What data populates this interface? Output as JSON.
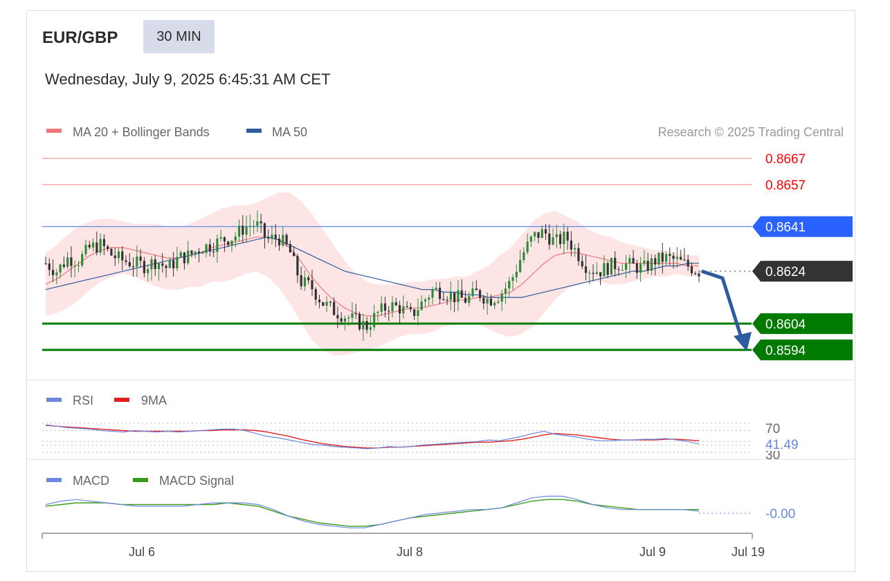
{
  "header": {
    "symbol": "EUR/GBP",
    "timeframe": "30 MIN",
    "timestamp": "Wednesday, July 9, 2025 6:45:31 AM CET"
  },
  "colors": {
    "ma20": "#f07878",
    "ma50": "#2e5a9e",
    "bb_fill": "#fde0e0",
    "bull": "#2e8b3a",
    "bear": "#333333",
    "resistance": "#ff0000",
    "pivot": "#2962ff",
    "support": "#007a00",
    "current": "#333333",
    "arrow": "#2e5aa0",
    "rsi": "#6a88e0",
    "rsi_ma": "#e02020",
    "macd": "#6a88e0",
    "macd_signal": "#3a9a1a"
  },
  "chart_data": [
    {
      "type": "candlestick",
      "legend": [
        "MA 20 + Bollinger Bands",
        "MA 50"
      ],
      "credit": "Research © 2025 Trading Central",
      "ylim": [
        0.8585,
        0.8672
      ],
      "x_ticks": [
        "Jul 6",
        "Jul 8",
        "Jul 9",
        "Jul 19"
      ],
      "levels": [
        {
          "value": 0.8667,
          "label": "0.8667",
          "kind": "resistance"
        },
        {
          "value": 0.8657,
          "label": "0.8657",
          "kind": "resistance"
        },
        {
          "value": 0.8641,
          "label": "0.8641",
          "kind": "pivot"
        },
        {
          "value": 0.8624,
          "label": "0.8624",
          "kind": "current"
        },
        {
          "value": 0.8604,
          "label": "0.8604",
          "kind": "support"
        },
        {
          "value": 0.8594,
          "label": "0.8594",
          "kind": "support"
        }
      ],
      "close_path": [
        0.8627,
        0.8624,
        0.8629,
        0.8628,
        0.8633,
        0.8634,
        0.863,
        0.8628,
        0.8627,
        0.8626,
        0.8628,
        0.8625,
        0.8629,
        0.863,
        0.8633,
        0.8634,
        0.8636,
        0.8637,
        0.8641,
        0.8642,
        0.8636,
        0.8637,
        0.8632,
        0.862,
        0.8618,
        0.8612,
        0.8609,
        0.8607,
        0.8605,
        0.8603,
        0.8608,
        0.8611,
        0.861,
        0.8607,
        0.8612,
        0.8617,
        0.8616,
        0.8614,
        0.8613,
        0.8616,
        0.8613,
        0.8615,
        0.862,
        0.863,
        0.8637,
        0.8639,
        0.8635,
        0.8637,
        0.8631,
        0.8625,
        0.8624,
        0.8626,
        0.8627,
        0.8626,
        0.8625,
        0.8628,
        0.8629,
        0.8628,
        0.8626,
        0.8624
      ],
      "ma20": [
        0.8619,
        0.8621,
        0.8624,
        0.8627,
        0.863,
        0.8632,
        0.8633,
        0.8633,
        0.8632,
        0.8631,
        0.863,
        0.8629,
        0.8629,
        0.863,
        0.8631,
        0.8633,
        0.8634,
        0.8635,
        0.8636,
        0.8637,
        0.8637,
        0.8636,
        0.8633,
        0.8628,
        0.8622,
        0.8617,
        0.8613,
        0.861,
        0.8608,
        0.8607,
        0.8607,
        0.8608,
        0.8609,
        0.861,
        0.861,
        0.8611,
        0.8612,
        0.8613,
        0.8613,
        0.8614,
        0.8614,
        0.8615,
        0.8616,
        0.8619,
        0.8623,
        0.8627,
        0.863,
        0.8631,
        0.8631,
        0.863,
        0.8629,
        0.8628,
        0.8627,
        0.8627,
        0.8627,
        0.8627,
        0.8627,
        0.8627,
        0.8626,
        0.8626
      ],
      "ma50": [
        0.8617,
        0.8618,
        0.8619,
        0.862,
        0.8621,
        0.8622,
        0.8623,
        0.8624,
        0.8625,
        0.8626,
        0.8627,
        0.8628,
        0.8629,
        0.863,
        0.8631,
        0.8632,
        0.8633,
        0.8634,
        0.8635,
        0.8636,
        0.8637,
        0.8636,
        0.8634,
        0.8632,
        0.863,
        0.8628,
        0.8626,
        0.8624,
        0.8623,
        0.8622,
        0.8621,
        0.862,
        0.8619,
        0.8618,
        0.8617,
        0.8617,
        0.8616,
        0.8616,
        0.8615,
        0.8615,
        0.8614,
        0.8614,
        0.8614,
        0.8614,
        0.8615,
        0.8616,
        0.8617,
        0.8618,
        0.8619,
        0.862,
        0.8621,
        0.8622,
        0.8623,
        0.8624,
        0.8624,
        0.8625,
        0.8626,
        0.8626,
        0.8627,
        0.8627
      ],
      "bb_width": [
        0.0012,
        0.0013,
        0.0014,
        0.0014,
        0.0013,
        0.0012,
        0.0011,
        0.001,
        0.001,
        0.0011,
        0.0012,
        0.0012,
        0.0012,
        0.0012,
        0.0013,
        0.0013,
        0.0014,
        0.0014,
        0.0013,
        0.0013,
        0.0015,
        0.0018,
        0.0021,
        0.0023,
        0.0024,
        0.0023,
        0.0021,
        0.0018,
        0.0015,
        0.0013,
        0.0012,
        0.0011,
        0.001,
        0.001,
        0.001,
        0.001,
        0.0009,
        0.0009,
        0.0009,
        0.001,
        0.0012,
        0.0015,
        0.0017,
        0.0019,
        0.002,
        0.0019,
        0.0017,
        0.0014,
        0.0012,
        0.001,
        0.0009,
        0.0009,
        0.0008,
        0.0007,
        0.0006,
        0.0005,
        0.0005,
        0.0004,
        0.0004,
        0.0004
      ],
      "forecast_to": 0.8594
    },
    {
      "type": "line",
      "legend": [
        "RSI",
        "9MA"
      ],
      "ylim": [
        30,
        70
      ],
      "level_labels": [
        "70",
        "30"
      ],
      "last_value_label": "41.49",
      "rsi": [
        68,
        66,
        64,
        63,
        62,
        60,
        59,
        58,
        60,
        59,
        58,
        59,
        58,
        59,
        60,
        61,
        62,
        62,
        60,
        56,
        52,
        50,
        47,
        44,
        41,
        40,
        38,
        37,
        36,
        35,
        36,
        38,
        37,
        38,
        40,
        41,
        42,
        43,
        44,
        45,
        47,
        46,
        49,
        52,
        56,
        59,
        55,
        53,
        51,
        48,
        46,
        46,
        47,
        47,
        48,
        48,
        49,
        47,
        45,
        41.49
      ],
      "rsi_ma": [
        67,
        66,
        65,
        64,
        63,
        62,
        61,
        60,
        59,
        59,
        59,
        59,
        59,
        59,
        60,
        60,
        61,
        61,
        61,
        60,
        58,
        55,
        52,
        48,
        45,
        42,
        40,
        38,
        37,
        36,
        36,
        37,
        37,
        38,
        39,
        40,
        41,
        42,
        43,
        44,
        44,
        45,
        46,
        48,
        51,
        54,
        56,
        55,
        54,
        52,
        50,
        48,
        47,
        47,
        47,
        47,
        48,
        48,
        47,
        46
      ]
    },
    {
      "type": "line",
      "legend": [
        "MACD",
        "MACD Signal"
      ],
      "ylim": [
        -0.0014,
        0.0008
      ],
      "last_value_label": "-0.00",
      "macd": [
        0.0002,
        0.0004,
        0.0005,
        0.0004,
        0.0003,
        0.0002,
        0.0001,
        0.0001,
        0.0001,
        0.0001,
        0.0002,
        0.0003,
        0.0003,
        0.0003,
        0.0002,
        -0.0001,
        -0.0005,
        -0.0008,
        -0.001,
        -0.0011,
        -0.0012,
        -0.0012,
        -0.001,
        -0.0008,
        -0.0006,
        -0.0004,
        -0.0003,
        -0.0002,
        -0.0001,
        -0.0001,
        0.0,
        0.0003,
        0.0006,
        0.0007,
        0.0007,
        0.0005,
        0.0002,
        0.0,
        -0.0001,
        -0.0001,
        -0.0001,
        -0.0001,
        -0.0001,
        -0.0002
      ],
      "macd_signal": [
        0.0001,
        0.0002,
        0.0003,
        0.0003,
        0.0003,
        0.0002,
        0.0002,
        0.0002,
        0.0002,
        0.0002,
        0.0002,
        0.0002,
        0.0003,
        0.0002,
        0.0001,
        -0.0002,
        -0.0005,
        -0.0007,
        -0.0009,
        -0.001,
        -0.0011,
        -0.0011,
        -0.001,
        -0.0008,
        -0.0006,
        -0.0005,
        -0.0004,
        -0.0003,
        -0.0002,
        -0.0001,
        0.0,
        0.0002,
        0.0004,
        0.0005,
        0.0005,
        0.0004,
        0.0002,
        0.0001,
        0.0,
        -0.0001,
        -0.0001,
        -0.0001,
        -0.0001,
        -0.0001
      ]
    }
  ]
}
